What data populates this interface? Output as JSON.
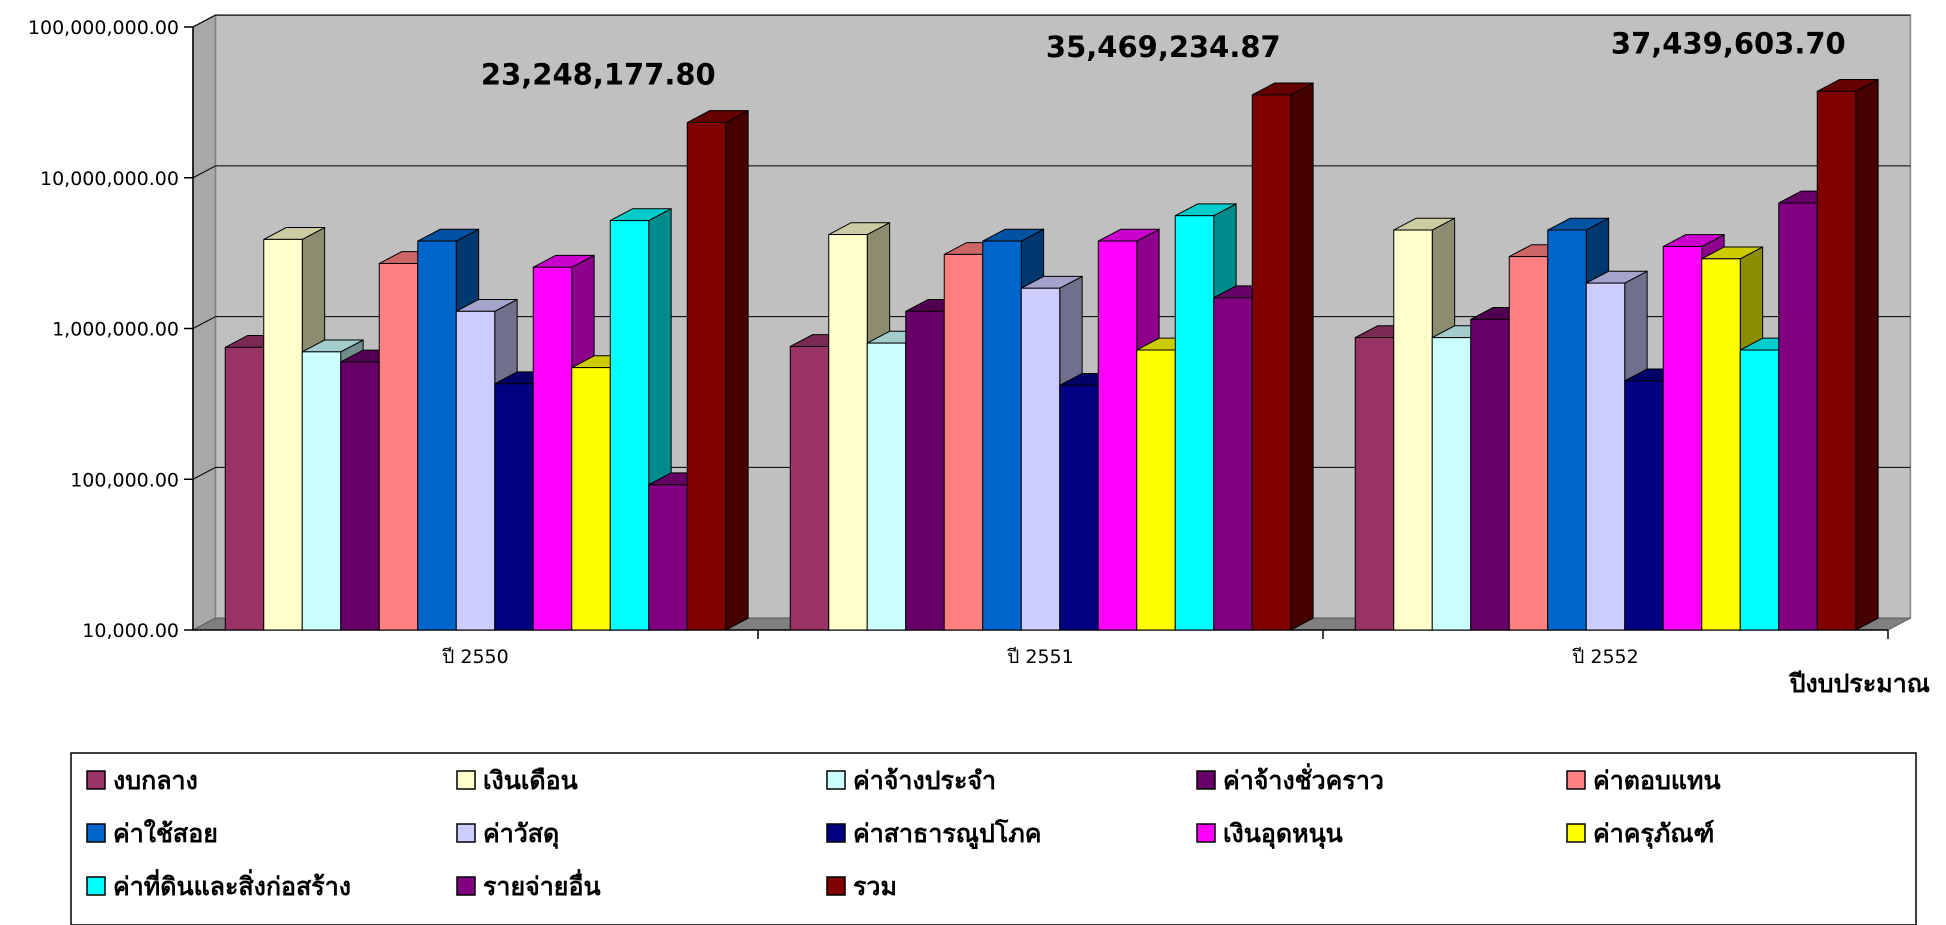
{
  "chart_data": {
    "type": "bar",
    "scale": "log",
    "ylim": [
      10000,
      100000000
    ],
    "yticks": [
      "10,000.00",
      "100,000.00",
      "1,000,000.00",
      "10,000,000.00",
      "100,000,000.00"
    ],
    "xlabel": "ปีงบประมาณ",
    "categories": [
      "ปี 2550",
      "ปี 2551",
      "ปี 2552"
    ],
    "totals_labels": [
      "23,248,177.80",
      "35,469,234.87",
      "37,439,603.70"
    ],
    "grid": true,
    "legend_position": "bottom",
    "series": [
      {
        "name": "งบกลาง",
        "color": "#993366",
        "values": [
          750000,
          760000,
          870000
        ]
      },
      {
        "name": "เงินเดือน",
        "color": "#FFFFCC",
        "values": [
          3900000,
          4200000,
          4500000
        ]
      },
      {
        "name": "ค่าจ้างประจำ",
        "color": "#CCFFFF",
        "values": [
          700000,
          800000,
          870000
        ]
      },
      {
        "name": "ค่าจ้างชั่วคราว",
        "color": "#660066",
        "values": [
          600000,
          1300000,
          1150000
        ]
      },
      {
        "name": "ค่าตอบแทน",
        "color": "#FF8080",
        "values": [
          2700000,
          3100000,
          3000000
        ]
      },
      {
        "name": "ค่าใช้สอย",
        "color": "#0066CC",
        "values": [
          3800000,
          3800000,
          4500000
        ]
      },
      {
        "name": "ค่าวัสดุ",
        "color": "#CCCCFF",
        "values": [
          1300000,
          1850000,
          2000000
        ]
      },
      {
        "name": "ค่าสาธารณูปโภค",
        "color": "#000080",
        "values": [
          430000,
          420000,
          450000
        ]
      },
      {
        "name": "เงินอุดหนุน",
        "color": "#FF00FF",
        "values": [
          2550000,
          3800000,
          3500000
        ]
      },
      {
        "name": "ค่าครุภัณฑ์",
        "color": "#FFFF00",
        "values": [
          550000,
          720000,
          2900000
        ]
      },
      {
        "name": "ค่าที่ดินและสิ่งก่อสร้าง",
        "color": "#00FFFF",
        "values": [
          5200000,
          5600000,
          720000
        ]
      },
      {
        "name": "รายจ่ายอื่น",
        "color": "#800080",
        "values": [
          92000,
          1600000,
          6800000
        ]
      },
      {
        "name": "รวม",
        "color": "#800000",
        "values": [
          23248177.8,
          35469234.87,
          37439603.7
        ]
      }
    ]
  }
}
